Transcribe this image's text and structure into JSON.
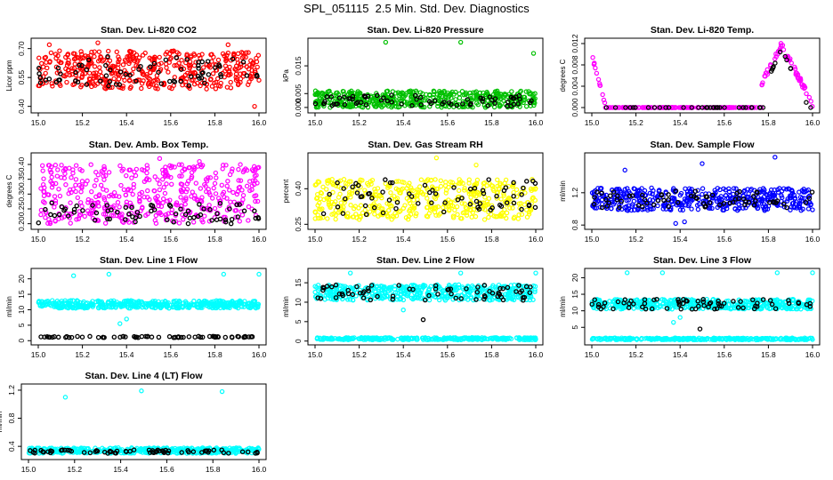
{
  "page_title": "SPL_051115  2.5 Min. Std. Dev. Diagnostics",
  "colors": {
    "axis": "#000000",
    "reference_points": "#000000"
  },
  "chart_data": [
    {
      "type": "scatter",
      "title": "Stan. Dev. Li-820 CO2",
      "ylabel": "Licor ppm",
      "xlabel": "",
      "xlim": [
        15.0,
        16.0
      ],
      "ylim": [
        0.38,
        0.74
      ],
      "xticks": [
        "15.0",
        "15.2",
        "15.4",
        "15.6",
        "15.8",
        "16.0"
      ],
      "yticks": [
        "0.40",
        "0.55",
        "0.70"
      ],
      "color": "#ff0000",
      "pattern": "band",
      "band": [
        0.49,
        0.69
      ],
      "outliers": [
        [
          15.27,
          0.73
        ],
        [
          15.05,
          0.72
        ],
        [
          15.98,
          0.4
        ],
        [
          15.86,
          0.72
        ]
      ],
      "ref_band": [
        0.5,
        0.66
      ],
      "ref_outliers": [],
      "grid": false
    },
    {
      "type": "scatter",
      "title": "Stan. Dev. Li-820 Pressure",
      "ylabel": "kPa",
      "xlabel": "",
      "xlim": [
        15.0,
        16.0
      ],
      "ylim": [
        -0.001,
        0.024
      ],
      "xticks": [
        "15.0",
        "15.2",
        "15.4",
        "15.6",
        "15.8",
        "16.0"
      ],
      "yticks": [
        "0.000",
        "0.005",
        "0.015"
      ],
      "color": "#00c000",
      "pattern": "band",
      "band": [
        0.0,
        0.006
      ],
      "outliers": [
        [
          15.32,
          0.0235
        ],
        [
          15.66,
          0.0235
        ],
        [
          15.99,
          0.0195
        ]
      ],
      "ref_band": [
        0.0005,
        0.0045
      ],
      "ref_outliers": [],
      "grid": false
    },
    {
      "type": "scatter",
      "title": "Stan. Dev. Li-820 Temp.",
      "ylabel": "degrees C",
      "xlabel": "",
      "xlim": [
        15.0,
        16.0
      ],
      "ylim": [
        -0.0005,
        0.0125
      ],
      "xticks": [
        "15.0",
        "15.2",
        "15.4",
        "15.6",
        "15.8",
        "16.0"
      ],
      "yticks": [
        "0.000",
        "0.004",
        "0.008",
        "0.012"
      ],
      "color": "#ff00ff",
      "pattern": "temp",
      "band": [
        0.0,
        0.0
      ],
      "outliers": [],
      "ref_band": [
        0.0,
        0.0
      ],
      "ref_outliers": [],
      "grid": false
    },
    {
      "type": "scatter",
      "title": "Stan. Dev. Amb. Box Temp.",
      "ylabel": "degrees C",
      "xlabel": "",
      "xlim": [
        15.0,
        16.0
      ],
      "ylim": [
        0.19,
        0.43
      ],
      "xticks": [
        "15.0",
        "15.2",
        "15.4",
        "15.6",
        "15.8",
        "16.0"
      ],
      "yticks": [
        "0.20",
        "0.25",
        "0.30",
        "0.35",
        "0.40"
      ],
      "color": "#ff00ff",
      "pattern": "band",
      "band": [
        0.2,
        0.4
      ],
      "outliers": [
        [
          15.55,
          0.42
        ],
        [
          15.73,
          0.41
        ]
      ],
      "ref_band": [
        0.2,
        0.27
      ],
      "ref_outliers": [],
      "grid": false
    },
    {
      "type": "scatter",
      "title": "Stan. Dev. Gas Stream RH",
      "ylabel": "percent",
      "xlabel": "",
      "xlim": [
        15.0,
        16.0
      ],
      "ylim": [
        0.24,
        0.54
      ],
      "xticks": [
        "15.0",
        "15.2",
        "15.4",
        "15.6",
        "15.8",
        "16.0"
      ],
      "yticks": [
        "0.25",
        "0.40"
      ],
      "color": "#ffff00",
      "pattern": "band",
      "band": [
        0.27,
        0.44
      ],
      "outliers": [
        [
          15.55,
          0.53
        ],
        [
          15.73,
          0.5
        ]
      ],
      "ref_band": [
        0.29,
        0.44
      ],
      "ref_outliers": [],
      "grid": false
    },
    {
      "type": "scatter",
      "title": "Stan. Dev. Sample Flow",
      "ylabel": "ml/min",
      "xlabel": "",
      "xlim": [
        15.0,
        16.0
      ],
      "ylim": [
        0.78,
        1.66
      ],
      "xticks": [
        "15.0",
        "15.2",
        "15.4",
        "15.6",
        "15.8",
        "16.0"
      ],
      "yticks": [
        "0.8",
        "1.2"
      ],
      "color": "#0000ff",
      "pattern": "band",
      "band": [
        0.98,
        1.26
      ],
      "outliers": [
        [
          15.15,
          1.48
        ],
        [
          15.5,
          1.56
        ],
        [
          15.83,
          1.64
        ],
        [
          15.38,
          0.82
        ],
        [
          15.42,
          0.84
        ]
      ],
      "ref_band": [
        1.0,
        1.22
      ],
      "ref_outliers": [],
      "grid": false
    },
    {
      "type": "scatter",
      "title": "Stan. Dev. Line 1 Flow",
      "ylabel": "ml/min",
      "xlabel": "",
      "xlim": [
        15.0,
        16.0
      ],
      "ylim": [
        -0.5,
        22.5
      ],
      "xticks": [
        "15.0",
        "15.2",
        "15.4",
        "15.6",
        "15.8",
        "16.0"
      ],
      "yticks": [
        "0",
        "5",
        "10",
        "15",
        "20"
      ],
      "color": "#00ffff",
      "pattern": "band",
      "band": [
        10.5,
        13.0
      ],
      "outliers": [
        [
          15.16,
          21.0
        ],
        [
          15.32,
          21.5
        ],
        [
          15.84,
          21.5
        ],
        [
          16.0,
          21.5
        ],
        [
          15.37,
          5.5
        ],
        [
          15.4,
          7.0
        ]
      ],
      "ref_band": [
        1.0,
        1.4
      ],
      "ref_outliers": [],
      "grid": false
    },
    {
      "type": "scatter",
      "title": "Stan. Dev. Line 2 Flow",
      "ylabel": "ml/min",
      "xlabel": "",
      "xlim": [
        15.0,
        16.0
      ],
      "ylim": [
        -0.3,
        18.0
      ],
      "xticks": [
        "15.0",
        "15.2",
        "15.4",
        "15.6",
        "15.8",
        "16.0"
      ],
      "yticks": [
        "0",
        "5",
        "10",
        "15"
      ],
      "color": "#00ffff",
      "pattern": "dual",
      "band": [
        10.5,
        14.5
      ],
      "low_band": [
        0.3,
        0.9
      ],
      "outliers": [
        [
          15.16,
          17.5
        ],
        [
          15.66,
          17.5
        ],
        [
          16.0,
          17.5
        ],
        [
          15.4,
          8.0
        ]
      ],
      "ref_band": [
        10.5,
        14.5
      ],
      "ref_outliers": [
        [
          15.49,
          5.5
        ]
      ],
      "grid": false
    },
    {
      "type": "scatter",
      "title": "Stan. Dev. Line 3 Flow",
      "ylabel": "ml/min",
      "xlabel": "",
      "xlim": [
        15.0,
        16.0
      ],
      "ylim": [
        0.5,
        22.0
      ],
      "xticks": [
        "15.0",
        "15.2",
        "15.4",
        "15.6",
        "15.8",
        "16.0"
      ],
      "yticks": [
        "5",
        "10",
        "15",
        "20"
      ],
      "color": "#00ffff",
      "pattern": "dual",
      "band": [
        10.5,
        13.5
      ],
      "low_band": [
        1.2,
        1.8
      ],
      "outliers": [
        [
          15.16,
          21.5
        ],
        [
          15.32,
          21.5
        ],
        [
          15.84,
          21.5
        ],
        [
          16.0,
          21.5
        ],
        [
          15.37,
          6.5
        ],
        [
          15.4,
          8.0
        ]
      ],
      "ref_band": [
        10.5,
        13.5
      ],
      "ref_outliers": [
        [
          15.49,
          4.5
        ]
      ],
      "grid": false
    },
    {
      "type": "scatter",
      "title": "Stan. Dev. Line 4 (LT) Flow",
      "ylabel": "ml/min",
      "xlabel": "",
      "xlim": [
        15.0,
        16.0
      ],
      "ylim": [
        0.25,
        1.25
      ],
      "xticks": [
        "15.0",
        "15.2",
        "15.4",
        "15.6",
        "15.8",
        "16.0"
      ],
      "yticks": [
        "0.4",
        "0.8",
        "1.2"
      ],
      "color": "#00ffff",
      "pattern": "band",
      "band": [
        0.3,
        0.38
      ],
      "outliers": [
        [
          15.16,
          1.1
        ],
        [
          15.49,
          1.19
        ],
        [
          15.84,
          1.18
        ]
      ],
      "ref_band": [
        0.3,
        0.35
      ],
      "ref_outliers": [],
      "grid": false
    }
  ]
}
